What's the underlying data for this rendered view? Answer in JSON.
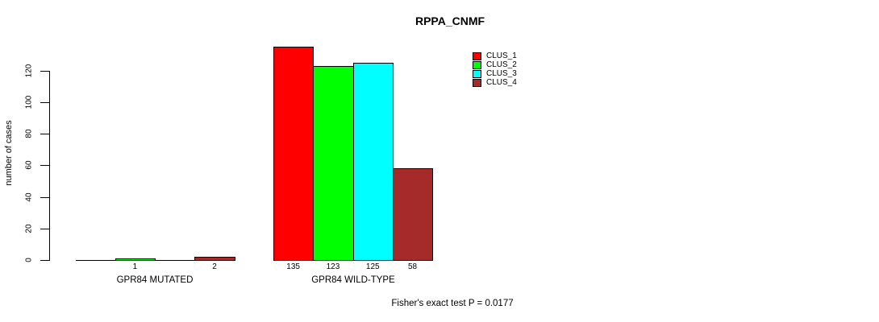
{
  "title": "RPPA_CNMF",
  "y_axis_label": "number of cases",
  "footnote": "Fisher's exact test P = 0.0177",
  "chart_data": {
    "type": "bar",
    "title": "RPPA_CNMF",
    "xlabel": "",
    "ylabel": "number of cases",
    "ylim": [
      0,
      120
    ],
    "yticks": [
      0,
      20,
      40,
      60,
      80,
      100,
      120
    ],
    "grid": false,
    "legend_position": "top-right",
    "bar_borders": "black",
    "categories": [
      "GPR84 MUTATED",
      "GPR84 WILD-TYPE"
    ],
    "series": [
      {
        "name": "CLUS_1",
        "color": "#FF0000",
        "values": [
          0,
          135
        ]
      },
      {
        "name": "CLUS_2",
        "color": "#00FF00",
        "values": [
          1,
          123
        ]
      },
      {
        "name": "CLUS_3",
        "color": "#00FFFF",
        "values": [
          0,
          125
        ]
      },
      {
        "name": "CLUS_4",
        "color": "#A52A2A",
        "values": [
          2,
          58
        ]
      }
    ],
    "bar_value_labels_shown": [
      [
        null,
        "1",
        null,
        "2"
      ],
      [
        "135",
        "123",
        "125",
        "58"
      ]
    ],
    "annotation": "Fisher's exact test P = 0.0177"
  }
}
